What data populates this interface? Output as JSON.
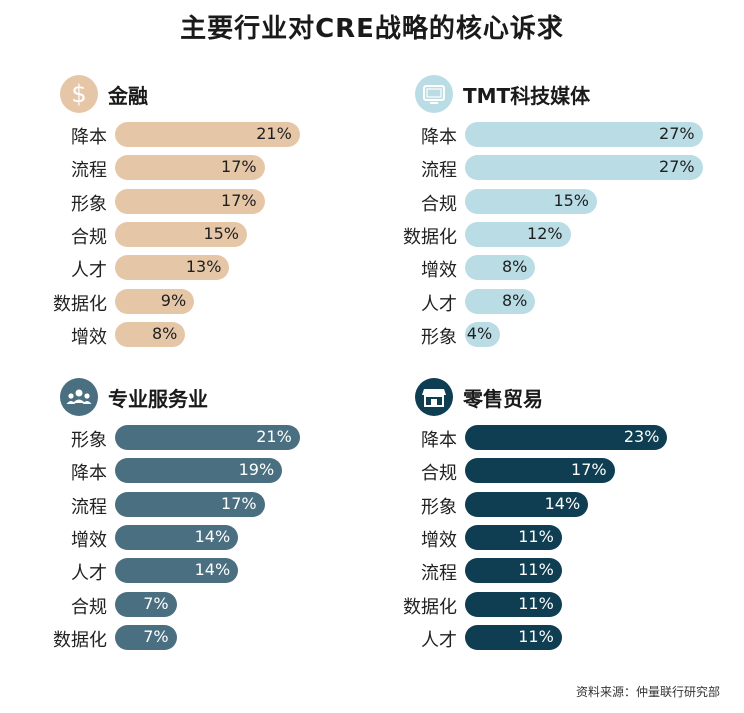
{
  "title": "主要行业对CRE战略的核心诉求",
  "source": "资料来源：仲量联行研究部",
  "colors": {
    "finance": "#e5c7a8",
    "tmt": "#b9dce5",
    "professional": "#4a6f80",
    "retail": "#0f3d52"
  },
  "chart_data": [
    {
      "type": "bar",
      "title": "金融",
      "icon": "dollar-icon",
      "categories": [
        "降本",
        "流程",
        "形象",
        "合规",
        "人才",
        "数据化",
        "增效"
      ],
      "values": [
        21,
        17,
        17,
        15,
        13,
        9,
        8
      ],
      "value_labels": [
        "21%",
        "17%",
        "17%",
        "15%",
        "13%",
        "9%",
        "8%"
      ],
      "unit": "%",
      "color": "#e5c7a8",
      "text_color": "#1f1f1f"
    },
    {
      "type": "bar",
      "title": "TMT科技媒体",
      "icon": "monitor-icon",
      "categories": [
        "降本",
        "流程",
        "合规",
        "数据化",
        "增效",
        "人才",
        "形象"
      ],
      "values": [
        27,
        27,
        15,
        12,
        8,
        8,
        4
      ],
      "value_labels": [
        "27%",
        "27%",
        "15%",
        "12%",
        "8%",
        "8%",
        "4%"
      ],
      "unit": "%",
      "color": "#b9dce5",
      "text_color": "#1f1f1f"
    },
    {
      "type": "bar",
      "title": "专业服务业",
      "icon": "people-icon",
      "categories": [
        "形象",
        "降本",
        "流程",
        "增效",
        "人才",
        "合规",
        "数据化"
      ],
      "values": [
        21,
        19,
        17,
        14,
        14,
        7,
        7
      ],
      "value_labels": [
        "21%",
        "19%",
        "17%",
        "14%",
        "14%",
        "7%",
        "7%"
      ],
      "unit": "%",
      "color": "#4a6f80",
      "text_color": "#ffffff"
    },
    {
      "type": "bar",
      "title": "零售贸易",
      "icon": "storefront-icon",
      "categories": [
        "降本",
        "合规",
        "形象",
        "增效",
        "流程",
        "数据化",
        "人才"
      ],
      "values": [
        23,
        17,
        14,
        11,
        11,
        11,
        11
      ],
      "value_labels": [
        "23%",
        "17%",
        "14%",
        "11%",
        "11%",
        "11%",
        "11%"
      ],
      "unit": "%",
      "color": "#0f3d52",
      "text_color": "#ffffff"
    }
  ]
}
